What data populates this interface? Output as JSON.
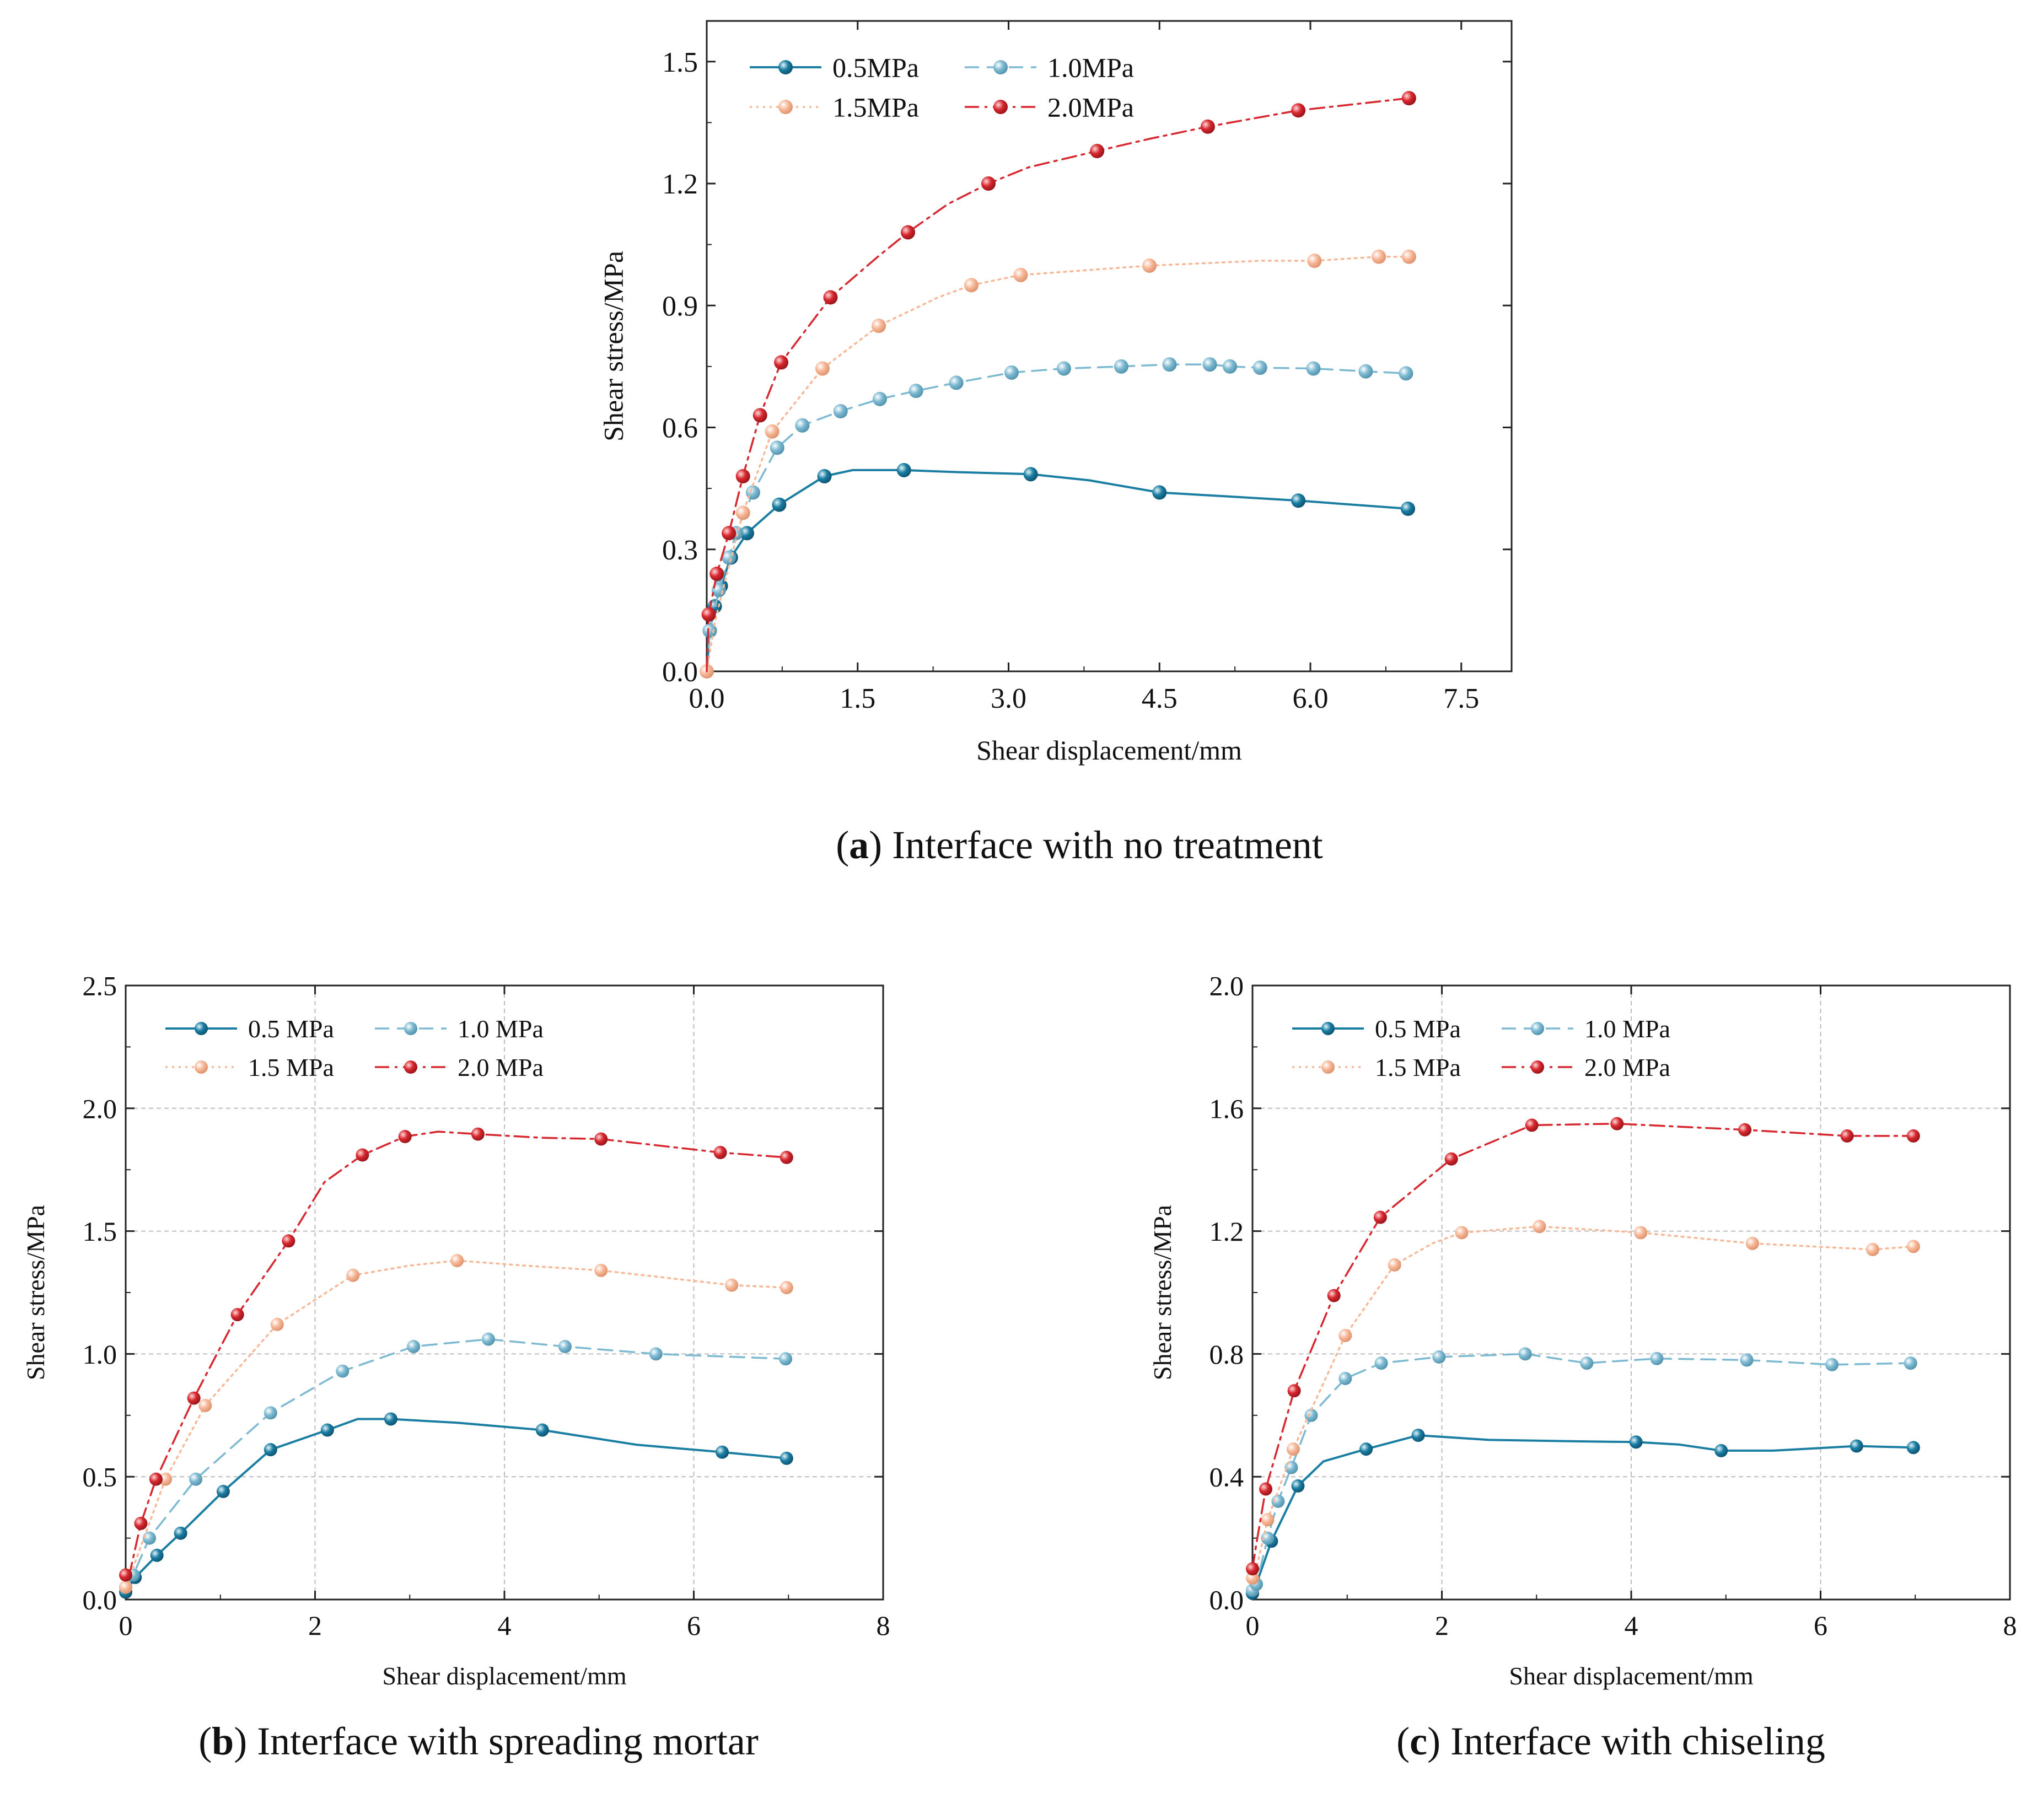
{
  "colors": {
    "p05": "#1a7ea3",
    "p10": "#7dbad2",
    "p15": "#f7b898",
    "p20": "#d7282f",
    "axis": "#222222",
    "grid": "#bdbdbd"
  },
  "captions": [
    {
      "letter": "a",
      "text": "Interface with no treatment"
    },
    {
      "letter": "b",
      "text": "Interface with spreading mortar"
    },
    {
      "letter": "c",
      "text": "Interface with chiseling"
    }
  ],
  "chart_data": [
    {
      "type": "line",
      "title": "",
      "xlabel": "Shear displacement/mm",
      "ylabel": "Shear stress/MPa",
      "xlim": [
        0,
        8.0
      ],
      "ylim": [
        0,
        1.6
      ],
      "xticks": [
        0,
        1.5,
        3.0,
        4.5,
        6.0,
        7.5
      ],
      "xtick_labels": [
        "0.0",
        "1.5",
        "3.0",
        "4.5",
        "6.0",
        "7.5"
      ],
      "yticks": [
        0,
        0.3,
        0.6,
        0.9,
        1.2,
        1.5
      ],
      "ytick_labels": [
        "0.0",
        "0.3",
        "0.6",
        "0.9",
        "1.2",
        "1.5"
      ],
      "grid": false,
      "legend_position": "top-left",
      "series": [
        {
          "name": "0.5MPa",
          "style": "solid",
          "color_key": "p05",
          "x": [
            0,
            0.03,
            0.08,
            0.14,
            0.24,
            0.4,
            0.72,
            1.17,
            1.45,
            1.96,
            2.5,
            3.22,
            3.8,
            4.5,
            5.2,
            5.88,
            6.97
          ],
          "y": [
            0,
            0.1,
            0.16,
            0.21,
            0.28,
            0.34,
            0.41,
            0.48,
            0.495,
            0.495,
            0.49,
            0.485,
            0.47,
            0.44,
            0.43,
            0.42,
            0.4
          ],
          "markers": [
            false,
            true,
            true,
            true,
            true,
            true,
            true,
            true,
            false,
            true,
            false,
            true,
            false,
            true,
            false,
            true,
            true
          ]
        },
        {
          "name": "1.0MPa",
          "style": "dashed",
          "color_key": "p10",
          "x": [
            0,
            0.03,
            0.07,
            0.12,
            0.22,
            0.29,
            0.46,
            0.7,
            0.95,
            1.33,
            1.72,
            2.08,
            2.48,
            3.03,
            3.55,
            4.12,
            4.6,
            5.0,
            5.2,
            5.5,
            6.03,
            6.55,
            6.95
          ],
          "y": [
            0,
            0.1,
            0.14,
            0.2,
            0.28,
            0.34,
            0.44,
            0.55,
            0.605,
            0.64,
            0.67,
            0.69,
            0.71,
            0.735,
            0.745,
            0.75,
            0.755,
            0.755,
            0.75,
            0.747,
            0.745,
            0.738,
            0.733
          ],
          "markers": [
            false,
            true,
            false,
            true,
            true,
            true,
            true,
            true,
            true,
            true,
            true,
            true,
            true,
            true,
            true,
            true,
            true,
            true,
            true,
            true,
            true,
            true,
            true
          ]
        },
        {
          "name": "1.5MPa",
          "style": "dotted",
          "color_key": "p15",
          "x": [
            0,
            0.08,
            0.18,
            0.36,
            0.65,
            1.15,
            1.71,
            2.3,
            2.63,
            3.12,
            4.4,
            5.5,
            6.04,
            6.68,
            6.98
          ],
          "y": [
            0,
            0.12,
            0.22,
            0.39,
            0.59,
            0.745,
            0.85,
            0.92,
            0.95,
            0.975,
            0.998,
            1.01,
            1.01,
            1.02,
            1.02
          ],
          "markers": [
            true,
            false,
            false,
            true,
            true,
            true,
            true,
            false,
            true,
            true,
            true,
            false,
            true,
            true,
            true
          ]
        },
        {
          "name": "2.0MPa",
          "style": "dashdot",
          "color_key": "p20",
          "x": [
            0,
            0.02,
            0.1,
            0.22,
            0.36,
            0.53,
            0.74,
            1.23,
            1.7,
            2.0,
            2.4,
            2.8,
            3.2,
            3.88,
            4.4,
            4.98,
            5.88,
            6.98
          ],
          "y": [
            0,
            0.14,
            0.24,
            0.34,
            0.48,
            0.63,
            0.76,
            0.92,
            1.02,
            1.08,
            1.15,
            1.2,
            1.24,
            1.28,
            1.31,
            1.34,
            1.38,
            1.41
          ],
          "markers": [
            false,
            true,
            true,
            true,
            true,
            true,
            true,
            true,
            false,
            true,
            false,
            true,
            false,
            true,
            false,
            true,
            true,
            true
          ]
        }
      ]
    },
    {
      "type": "line",
      "title": "",
      "xlabel": "Shear displacement/mm",
      "ylabel": "Shear stress/MPa",
      "xlim": [
        0,
        8
      ],
      "ylim": [
        0,
        2.5
      ],
      "xticks": [
        0,
        2,
        4,
        6,
        8
      ],
      "xtick_labels": [
        "0",
        "2",
        "4",
        "6",
        "8"
      ],
      "yticks": [
        0,
        0.5,
        1.0,
        1.5,
        2.0,
        2.5
      ],
      "ytick_labels": [
        "0.0",
        "0.5",
        "1.0",
        "1.5",
        "2.0",
        "2.5"
      ],
      "grid": true,
      "legend_position": "top-left",
      "series": [
        {
          "name": "0.5 MPa",
          "style": "solid",
          "color_key": "p05",
          "x": [
            0,
            0.1,
            0.33,
            0.58,
            1.03,
            1.53,
            2.13,
            2.45,
            2.8,
            3.5,
            4.4,
            5.4,
            6.3,
            6.98
          ],
          "y": [
            0.03,
            0.09,
            0.18,
            0.27,
            0.44,
            0.61,
            0.69,
            0.735,
            0.735,
            0.72,
            0.69,
            0.63,
            0.6,
            0.575
          ],
          "markers": [
            true,
            true,
            true,
            true,
            true,
            true,
            true,
            false,
            true,
            false,
            true,
            false,
            true,
            true
          ]
        },
        {
          "name": "1.0 MPa",
          "style": "dashed",
          "color_key": "p10",
          "x": [
            0,
            0.08,
            0.25,
            0.74,
            1.53,
            2.29,
            3.04,
            3.83,
            4.64,
            5.6,
            6.97
          ],
          "y": [
            0.05,
            0.1,
            0.25,
            0.49,
            0.76,
            0.93,
            1.03,
            1.06,
            1.03,
            1.0,
            0.98
          ],
          "markers": [
            true,
            true,
            true,
            true,
            true,
            true,
            true,
            true,
            true,
            true,
            true
          ]
        },
        {
          "name": "1.5 MPa",
          "style": "dotted",
          "color_key": "p15",
          "x": [
            0,
            0.05,
            0.42,
            0.84,
            1.6,
            2.4,
            3.0,
            3.5,
            4.2,
            5.02,
            6.4,
            6.98
          ],
          "y": [
            0.05,
            0.1,
            0.49,
            0.79,
            1.12,
            1.32,
            1.36,
            1.38,
            1.36,
            1.34,
            1.28,
            1.27
          ],
          "markers": [
            true,
            false,
            true,
            true,
            true,
            true,
            false,
            true,
            false,
            true,
            true,
            true
          ]
        },
        {
          "name": "2.0 MPa",
          "style": "dashdot",
          "color_key": "p20",
          "x": [
            0,
            0.05,
            0.16,
            0.32,
            0.72,
            1.18,
            1.72,
            2.1,
            2.5,
            2.95,
            3.3,
            3.72,
            4.4,
            5.02,
            6.28,
            6.98
          ],
          "y": [
            0.1,
            0.12,
            0.31,
            0.49,
            0.82,
            1.16,
            1.46,
            1.7,
            1.81,
            1.885,
            1.905,
            1.895,
            1.88,
            1.875,
            1.82,
            1.8
          ],
          "markers": [
            true,
            false,
            true,
            true,
            true,
            true,
            true,
            false,
            true,
            true,
            false,
            true,
            false,
            true,
            true,
            true
          ]
        }
      ]
    },
    {
      "type": "line",
      "title": "",
      "xlabel": "Shear displacement/mm",
      "ylabel": "Shear stress/MPa",
      "xlim": [
        0,
        8
      ],
      "ylim": [
        0,
        2.0
      ],
      "xticks": [
        0,
        2,
        4,
        6,
        8
      ],
      "xtick_labels": [
        "0",
        "2",
        "4",
        "6",
        "8"
      ],
      "yticks": [
        0,
        0.4,
        0.8,
        1.2,
        1.6,
        2.0
      ],
      "ytick_labels": [
        "0.0",
        "0.4",
        "0.8",
        "1.2",
        "1.6",
        "2.0"
      ],
      "grid": true,
      "legend_position": "top-left",
      "series": [
        {
          "name": "0.5 MPa",
          "style": "solid",
          "color_key": "p05",
          "x": [
            0,
            0.04,
            0.2,
            0.48,
            0.75,
            1.2,
            1.75,
            2.5,
            3.5,
            4.05,
            4.5,
            4.95,
            5.5,
            6.38,
            6.98
          ],
          "y": [
            0.02,
            0.05,
            0.19,
            0.37,
            0.45,
            0.49,
            0.535,
            0.52,
            0.515,
            0.513,
            0.505,
            0.485,
            0.485,
            0.5,
            0.495
          ],
          "markers": [
            true,
            true,
            true,
            true,
            false,
            true,
            true,
            false,
            false,
            true,
            false,
            true,
            false,
            true,
            true
          ]
        },
        {
          "name": "1.0 MPa",
          "style": "dashed",
          "color_key": "p10",
          "x": [
            0,
            0.04,
            0.16,
            0.27,
            0.41,
            0.62,
            0.98,
            1.36,
            1.97,
            2.88,
            3.53,
            4.27,
            5.22,
            6.12,
            6.95
          ],
          "y": [
            0.03,
            0.05,
            0.2,
            0.32,
            0.43,
            0.6,
            0.72,
            0.77,
            0.79,
            0.8,
            0.77,
            0.785,
            0.78,
            0.765,
            0.77
          ],
          "markers": [
            true,
            true,
            true,
            true,
            true,
            true,
            true,
            true,
            true,
            true,
            true,
            true,
            true,
            true,
            true
          ]
        },
        {
          "name": "1.5 MPa",
          "style": "dotted",
          "color_key": "p15",
          "x": [
            0,
            0.04,
            0.16,
            0.43,
            0.98,
            1.5,
            1.9,
            2.21,
            3.03,
            4.1,
            5.28,
            6.55,
            6.98
          ],
          "y": [
            0.07,
            0.1,
            0.26,
            0.49,
            0.86,
            1.09,
            1.16,
            1.195,
            1.215,
            1.195,
            1.16,
            1.14,
            1.15
          ],
          "markers": [
            true,
            false,
            true,
            true,
            true,
            true,
            false,
            true,
            true,
            true,
            true,
            true,
            true
          ]
        },
        {
          "name": "2.0 MPa",
          "style": "dashdot",
          "color_key": "p20",
          "x": [
            0,
            0.04,
            0.14,
            0.44,
            0.86,
            1.35,
            2.1,
            2.95,
            3.85,
            5.2,
            6.28,
            6.98
          ],
          "y": [
            0.1,
            0.18,
            0.36,
            0.68,
            0.99,
            1.245,
            1.435,
            1.545,
            1.55,
            1.53,
            1.51,
            1.51
          ],
          "markers": [
            true,
            false,
            true,
            true,
            true,
            true,
            true,
            true,
            true,
            true,
            true,
            true
          ]
        }
      ]
    }
  ]
}
